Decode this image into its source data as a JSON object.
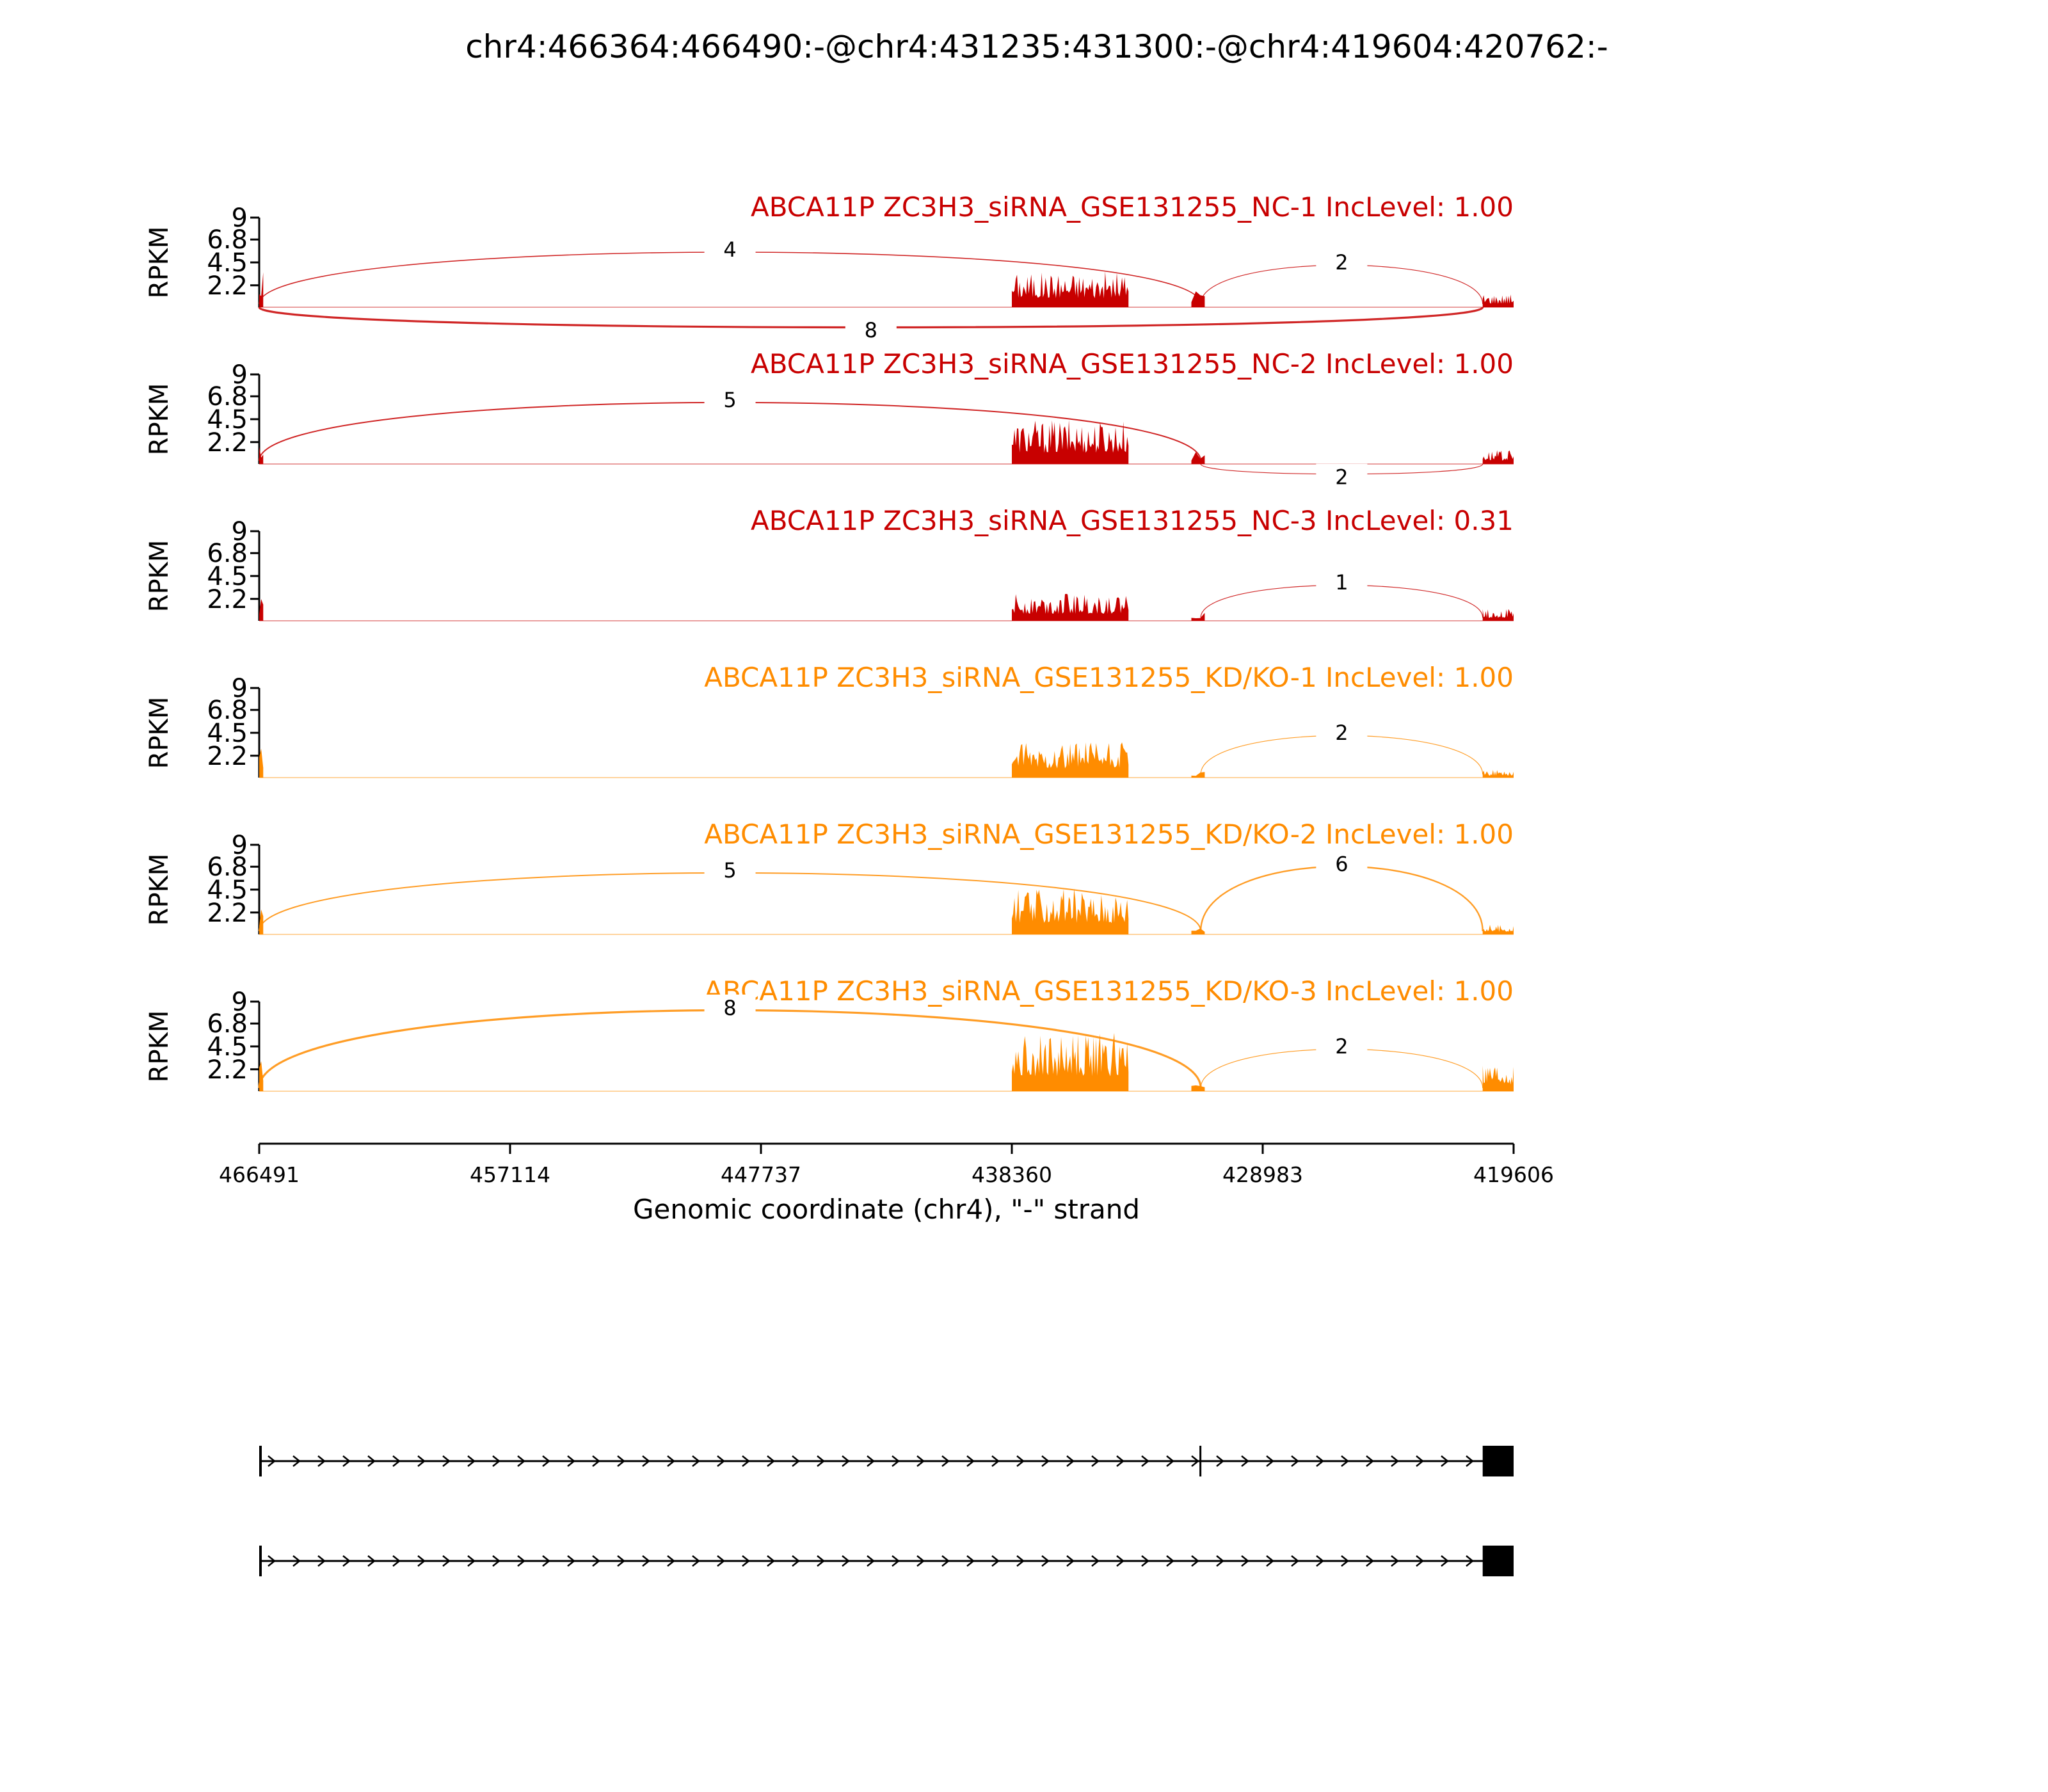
{
  "chart_data": {
    "type": "area",
    "title": "chr4:466364:466490:-@chr4:431235:431300:-@chr4:419604:420762:-",
    "xlabel": "Genomic coordinate (chr4), \"-\" strand",
    "ylabel": "RPKM",
    "x_axis": {
      "reversed": true,
      "xlim": [
        466491,
        419606
      ],
      "ticks": [
        466491,
        457114,
        447737,
        438360,
        428983,
        419606
      ],
      "tick_labels": [
        "466491",
        "457114",
        "447737",
        "438360",
        "428983",
        "419606"
      ]
    },
    "y_axis": {
      "ylim": [
        0,
        9
      ],
      "ticks": [
        2.2,
        4.5,
        6.8,
        9
      ],
      "tick_labels": [
        "2.2",
        "4.5",
        "6.8",
        "9"
      ]
    },
    "regions": {
      "exon1": [
        466491,
        466364
      ],
      "exon2_mid": 431300,
      "body": [
        438360,
        434000
      ],
      "exon3": [
        420762,
        419606
      ]
    },
    "series": [
      {
        "name": "ABCA11P ZC3H3_siRNA_GSE131255_NC-1 IncLevel: 1.00",
        "color": "#C80000",
        "coverage": {
          "exon1": 4.0,
          "body": 3.6,
          "exon2": 2.0,
          "exon3": 1.4
        },
        "junctions": [
          {
            "label": "4",
            "count": 4,
            "from": 466491,
            "to": 431300,
            "side": "above"
          },
          {
            "label": "2",
            "count": 2,
            "from": 431300,
            "to": 420762,
            "side": "above"
          },
          {
            "label": "8",
            "count": 8,
            "from": 466491,
            "to": 420762,
            "side": "below"
          }
        ]
      },
      {
        "name": "ABCA11P ZC3H3_siRNA_GSE131255_NC-2 IncLevel: 1.00",
        "color": "#C80000",
        "coverage": {
          "exon1": 2.5,
          "body": 4.5,
          "exon2": 1.3,
          "exon3": 1.4
        },
        "junctions": [
          {
            "label": "5",
            "count": 5,
            "from": 466491,
            "to": 431300,
            "side": "above"
          },
          {
            "label": "2",
            "count": 2,
            "from": 431300,
            "to": 420762,
            "side": "below"
          }
        ]
      },
      {
        "name": "ABCA11P ZC3H3_siRNA_GSE131255_NC-3 IncLevel: 0.31",
        "color": "#C80000",
        "coverage": {
          "exon1": 2.2,
          "body": 2.8,
          "exon2": 1.0,
          "exon3": 1.2
        },
        "junctions": [
          {
            "label": "1",
            "count": 1,
            "from": 431300,
            "to": 420762,
            "side": "above"
          }
        ]
      },
      {
        "name": "ABCA11P ZC3H3_siRNA_GSE131255_KD/KO-1 IncLevel: 1.00",
        "color": "#FF8C00",
        "coverage": {
          "exon1": 3.2,
          "body": 3.6,
          "exon2": 0.6,
          "exon3": 0.8
        },
        "junctions": [
          {
            "label": "2",
            "count": 2,
            "from": 431300,
            "to": 420762,
            "side": "above"
          }
        ]
      },
      {
        "name": "ABCA11P ZC3H3_siRNA_GSE131255_KD/KO-2 IncLevel: 1.00",
        "color": "#FF8C00",
        "coverage": {
          "exon1": 3.0,
          "body": 4.6,
          "exon2": 1.0,
          "exon3": 1.0
        },
        "junctions": [
          {
            "label": "5",
            "count": 5,
            "from": 466491,
            "to": 431300,
            "side": "above"
          },
          {
            "label": "6",
            "count": 6,
            "from": 431300,
            "to": 420762,
            "side": "above"
          }
        ]
      },
      {
        "name": "ABCA11P ZC3H3_siRNA_GSE131255_KD/KO-3 IncLevel: 1.00",
        "color": "#FF8C00",
        "coverage": {
          "exon1": 4.0,
          "body": 6.0,
          "exon2": 1.3,
          "exon3": 2.6
        },
        "junctions": [
          {
            "label": "8",
            "count": 8,
            "from": 466491,
            "to": 431300,
            "side": "above"
          },
          {
            "label": "2",
            "count": 2,
            "from": 431300,
            "to": 420762,
            "side": "above"
          }
        ]
      }
    ],
    "gene_models": [
      {
        "exons": [
          "exon1",
          "exon2",
          "exon3"
        ],
        "strand": "-"
      },
      {
        "exons": [
          "exon1",
          "exon3"
        ],
        "strand": "-"
      }
    ]
  }
}
